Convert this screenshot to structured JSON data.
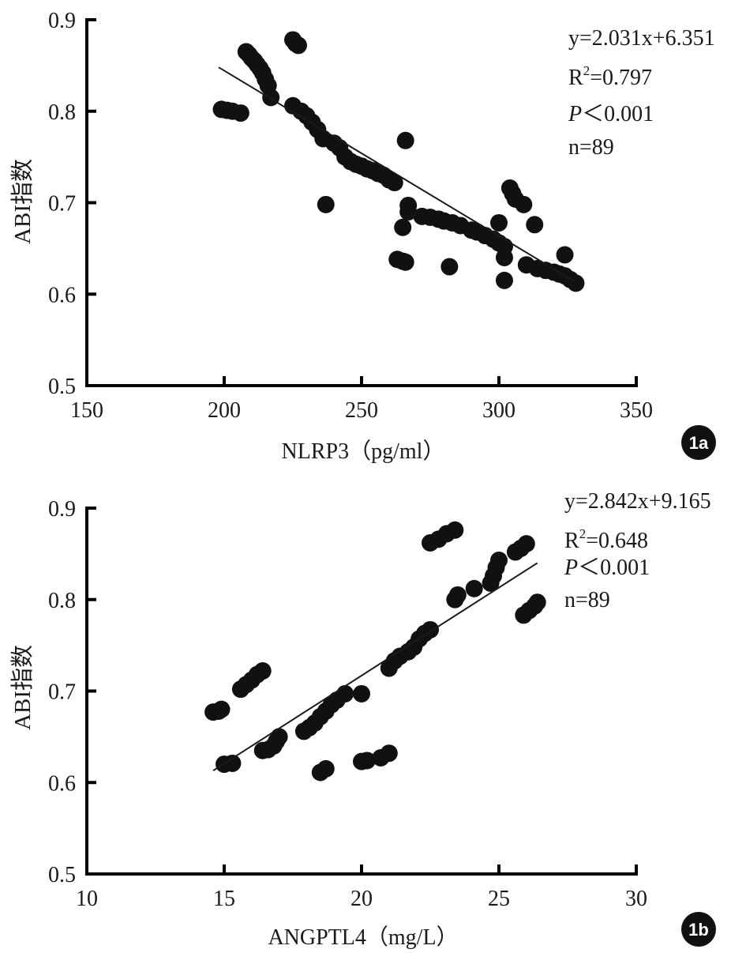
{
  "chart_data": [
    {
      "type": "scatter",
      "panel_label": "1a",
      "xlabel": "NLRP3（pg/ml）",
      "ylabel": "ABI指数",
      "xlim": [
        150,
        350
      ],
      "ylim": [
        0.5,
        0.9
      ],
      "xticks": [
        "150",
        "200",
        "250",
        "300",
        "350"
      ],
      "yticks": [
        "0.5",
        "0.6",
        "0.7",
        "0.8",
        "0.9"
      ],
      "annotations": {
        "equation": "y=2.031x+6.351",
        "r2_prefix": "R",
        "r2_sup": "2",
        "r2_value": "=0.797",
        "p_letter": "P",
        "p_value": "＜0.001",
        "n": "n=89"
      },
      "trendline": {
        "x": [
          198,
          328
        ],
        "y": [
          0.848,
          0.613
        ]
      },
      "points": [
        [
          199,
          0.802
        ],
        [
          201,
          0.801
        ],
        [
          203,
          0.8
        ],
        [
          206,
          0.798
        ],
        [
          208,
          0.865
        ],
        [
          209,
          0.862
        ],
        [
          210,
          0.858
        ],
        [
          211,
          0.855
        ],
        [
          212,
          0.851
        ],
        [
          213,
          0.847
        ],
        [
          214,
          0.842
        ],
        [
          215,
          0.835
        ],
        [
          216,
          0.828
        ],
        [
          217,
          0.815
        ],
        [
          225,
          0.878
        ],
        [
          226,
          0.874
        ],
        [
          227,
          0.872
        ],
        [
          225,
          0.806
        ],
        [
          228,
          0.8
        ],
        [
          230,
          0.795
        ],
        [
          232,
          0.788
        ],
        [
          234,
          0.78
        ],
        [
          236,
          0.77
        ],
        [
          237,
          0.698
        ],
        [
          240,
          0.765
        ],
        [
          242,
          0.76
        ],
        [
          244,
          0.75
        ],
        [
          246,
          0.745
        ],
        [
          248,
          0.742
        ],
        [
          250,
          0.74
        ],
        [
          252,
          0.737
        ],
        [
          254,
          0.735
        ],
        [
          256,
          0.732
        ],
        [
          258,
          0.73
        ],
        [
          260,
          0.725
        ],
        [
          262,
          0.722
        ],
        [
          263,
          0.638
        ],
        [
          265,
          0.636
        ],
        [
          266,
          0.635
        ],
        [
          265,
          0.673
        ],
        [
          266,
          0.768
        ],
        [
          267,
          0.697
        ],
        [
          267,
          0.69
        ],
        [
          272,
          0.685
        ],
        [
          275,
          0.684
        ],
        [
          278,
          0.682
        ],
        [
          280,
          0.68
        ],
        [
          283,
          0.678
        ],
        [
          282,
          0.63
        ],
        [
          286,
          0.675
        ],
        [
          290,
          0.67
        ],
        [
          292,
          0.668
        ],
        [
          295,
          0.664
        ],
        [
          298,
          0.66
        ],
        [
          300,
          0.656
        ],
        [
          300,
          0.678
        ],
        [
          302,
          0.652
        ],
        [
          302,
          0.64
        ],
        [
          302,
          0.615
        ],
        [
          304,
          0.716
        ],
        [
          305,
          0.71
        ],
        [
          306,
          0.704
        ],
        [
          309,
          0.698
        ],
        [
          310,
          0.632
        ],
        [
          313,
          0.676
        ],
        [
          314,
          0.628
        ],
        [
          317,
          0.626
        ],
        [
          320,
          0.624
        ],
        [
          322,
          0.622
        ],
        [
          324,
          0.643
        ],
        [
          324,
          0.62
        ],
        [
          326,
          0.616
        ],
        [
          328,
          0.612
        ]
      ]
    },
    {
      "type": "scatter",
      "panel_label": "1b",
      "xlabel": "ANGPTL4（mg/L）",
      "ylabel": "ABI指数",
      "xlim": [
        10,
        30
      ],
      "ylim": [
        0.5,
        0.9
      ],
      "xticks": [
        "10",
        "15",
        "20",
        "25",
        "30"
      ],
      "yticks": [
        "0.5",
        "0.6",
        "0.7",
        "0.8",
        "0.9"
      ],
      "annotations": {
        "equation": "y=2.842x+9.165",
        "r2_prefix": "R",
        "r2_sup": "2",
        "r2_value": "=0.648",
        "p_letter": "P",
        "p_value": "＜0.001",
        "n": "n=89"
      },
      "trendline": {
        "x": [
          14.6,
          26.4
        ],
        "y": [
          0.613,
          0.84
        ]
      },
      "points": [
        [
          14.6,
          0.677
        ],
        [
          14.8,
          0.678
        ],
        [
          14.9,
          0.68
        ],
        [
          15.0,
          0.62
        ],
        [
          15.3,
          0.621
        ],
        [
          15.6,
          0.702
        ],
        [
          15.8,
          0.707
        ],
        [
          16.0,
          0.712
        ],
        [
          16.2,
          0.718
        ],
        [
          16.4,
          0.722
        ],
        [
          16.4,
          0.635
        ],
        [
          16.6,
          0.636
        ],
        [
          16.8,
          0.64
        ],
        [
          16.9,
          0.645
        ],
        [
          17.0,
          0.65
        ],
        [
          17.9,
          0.656
        ],
        [
          18.1,
          0.66
        ],
        [
          18.3,
          0.665
        ],
        [
          18.5,
          0.672
        ],
        [
          18.7,
          0.678
        ],
        [
          18.9,
          0.685
        ],
        [
          19.1,
          0.69
        ],
        [
          19.4,
          0.697
        ],
        [
          18.5,
          0.611
        ],
        [
          18.7,
          0.615
        ],
        [
          20.0,
          0.697
        ],
        [
          20.0,
          0.623
        ],
        [
          20.2,
          0.624
        ],
        [
          20.7,
          0.627
        ],
        [
          21.0,
          0.632
        ],
        [
          21.0,
          0.725
        ],
        [
          21.2,
          0.733
        ],
        [
          21.4,
          0.738
        ],
        [
          21.7,
          0.743
        ],
        [
          21.9,
          0.748
        ],
        [
          22.1,
          0.757
        ],
        [
          22.3,
          0.763
        ],
        [
          22.5,
          0.767
        ],
        [
          22.5,
          0.862
        ],
        [
          22.8,
          0.866
        ],
        [
          23.1,
          0.872
        ],
        [
          23.4,
          0.876
        ],
        [
          23.4,
          0.8
        ],
        [
          23.5,
          0.805
        ],
        [
          24.1,
          0.812
        ],
        [
          24.7,
          0.818
        ],
        [
          24.8,
          0.826
        ],
        [
          24.9,
          0.835
        ],
        [
          25.0,
          0.843
        ],
        [
          25.6,
          0.852
        ],
        [
          25.8,
          0.856
        ],
        [
          26.0,
          0.861
        ],
        [
          25.9,
          0.783
        ],
        [
          26.1,
          0.788
        ],
        [
          26.3,
          0.793
        ],
        [
          26.4,
          0.797
        ]
      ]
    }
  ]
}
